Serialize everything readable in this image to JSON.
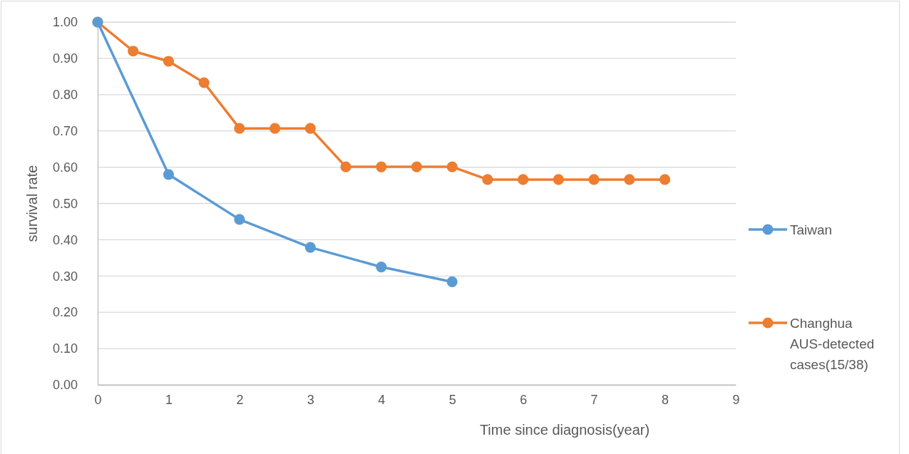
{
  "chart_data": {
    "type": "line",
    "xlabel": "Time since diagnosis(year)",
    "ylabel": "survival rate",
    "xlim": [
      0,
      9
    ],
    "xticks": [
      0,
      1,
      2,
      3,
      4,
      5,
      6,
      7,
      8,
      9
    ],
    "ylim": [
      0,
      1
    ],
    "yticks": [
      {
        "value": 0,
        "label": "0.00"
      },
      {
        "value": 0.1,
        "label": "0.10"
      },
      {
        "value": 0.2,
        "label": "0.20"
      },
      {
        "value": 0.3,
        "label": "0.30"
      },
      {
        "value": 0.4,
        "label": "0.40"
      },
      {
        "value": 0.5,
        "label": "0.50"
      },
      {
        "value": 0.6,
        "label": "0.60"
      },
      {
        "value": 0.7,
        "label": "0.70"
      },
      {
        "value": 0.8,
        "label": "0.80"
      },
      {
        "value": 0.9,
        "label": "0.90"
      },
      {
        "value": 1,
        "label": "1.00"
      }
    ],
    "grid": "y",
    "legend": "right",
    "marker": "circle",
    "line_style": "solid",
    "series": [
      {
        "name": "Taiwan",
        "color": "#5b9bd5",
        "x": [
          0,
          1,
          2,
          3,
          4,
          5
        ],
        "values": [
          1.0,
          0.58,
          0.456,
          0.379,
          0.325,
          0.284
        ]
      },
      {
        "name": "Changhua AUS-detected cases(15/38)",
        "color": "#ed7d31",
        "x": [
          0,
          0.5,
          1,
          1.5,
          2,
          2.5,
          3,
          3.5,
          4,
          4.5,
          5,
          5.5,
          6,
          6.5,
          7,
          7.5,
          8
        ],
        "values": [
          1.0,
          0.92,
          0.892,
          0.833,
          0.707,
          0.707,
          0.707,
          0.601,
          0.601,
          0.601,
          0.601,
          0.566,
          0.566,
          0.566,
          0.566,
          0.566,
          0.566
        ]
      }
    ]
  }
}
